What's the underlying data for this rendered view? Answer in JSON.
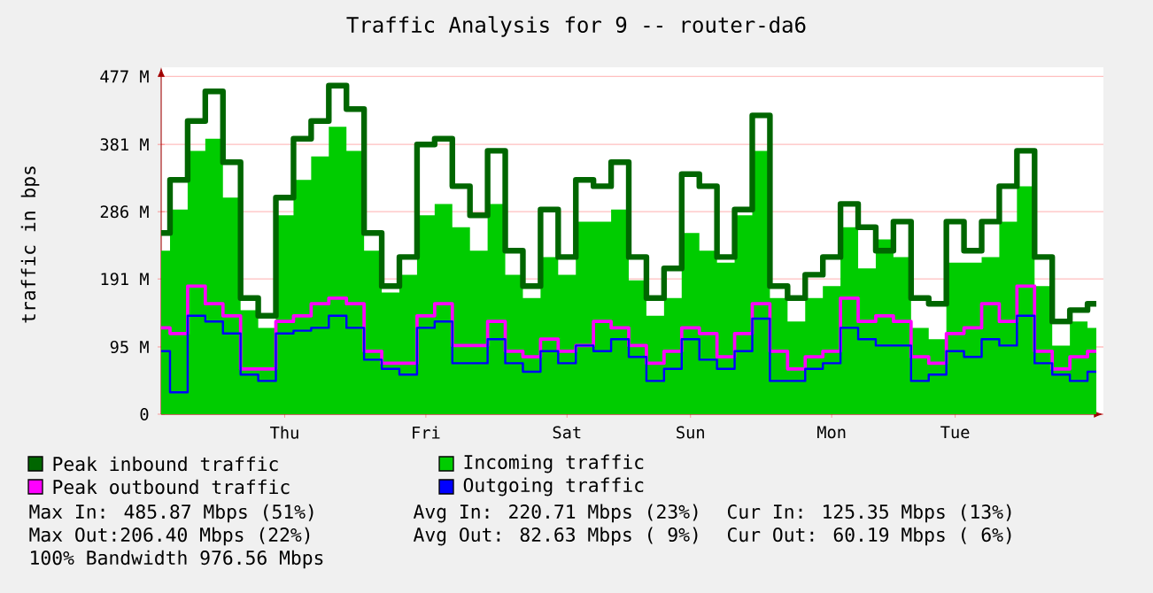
{
  "chart_data": {
    "type": "area",
    "title": "Traffic Analysis for 9 -- router-da6",
    "ylabel": "traffic in bps",
    "categories": [
      null,
      null,
      null,
      null,
      null,
      null,
      null,
      "Thu",
      null,
      null,
      null,
      null,
      null,
      null,
      null,
      "Fri",
      null,
      null,
      null,
      null,
      null,
      null,
      null,
      "Sat",
      null,
      null,
      null,
      null,
      null,
      null,
      "Sun",
      null,
      null,
      null,
      null,
      null,
      null,
      null,
      "Mon",
      null,
      null,
      null,
      null,
      null,
      null,
      "Tue",
      null,
      null,
      null,
      null,
      null,
      null,
      null,
      null
    ],
    "ylim": [
      0,
      490
    ],
    "yticks": [
      0,
      {
        "value": 95,
        "label": "95 M"
      },
      {
        "value": 191,
        "label": "191 M"
      },
      {
        "value": 286,
        "label": "286 M"
      },
      {
        "value": 381,
        "label": "381 M"
      },
      {
        "value": 477,
        "label": "477 M"
      }
    ],
    "grid": "y",
    "legend": "bottom",
    "series": [
      {
        "name": "Peak inbound traffic",
        "type": "step",
        "color": "#006600",
        "values": [
          256,
          331,
          414,
          456,
          356,
          164,
          139,
          306,
          389,
          414,
          464,
          431,
          256,
          181,
          222,
          381,
          389,
          322,
          281,
          372,
          231,
          181,
          289,
          222,
          331,
          322,
          356,
          222,
          164,
          206,
          339,
          322,
          222,
          289,
          422,
          181,
          164,
          197,
          222,
          297,
          264,
          231,
          272,
          164,
          156,
          272,
          231,
          272,
          322,
          372,
          222,
          131,
          147,
          156
        ]
      },
      {
        "name": "Incoming traffic",
        "color": "#00cc00",
        "values": [
          231,
          289,
          372,
          389,
          306,
          147,
          122,
          281,
          331,
          364,
          406,
          372,
          231,
          172,
          197,
          281,
          297,
          264,
          231,
          297,
          197,
          164,
          222,
          197,
          272,
          272,
          289,
          189,
          139,
          164,
          256,
          231,
          214,
          281,
          372,
          164,
          131,
          164,
          181,
          264,
          206,
          247,
          222,
          122,
          106,
          214,
          214,
          222,
          272,
          322,
          181,
          97,
          131,
          122
        ]
      },
      {
        "name": "Peak outbound traffic",
        "type": "step",
        "color": "#ff00ff",
        "values": [
          122,
          114,
          181,
          156,
          139,
          64,
          64,
          131,
          139,
          156,
          164,
          156,
          89,
          72,
          72,
          139,
          156,
          97,
          97,
          131,
          89,
          81,
          106,
          89,
          97,
          131,
          122,
          97,
          72,
          89,
          122,
          114,
          81,
          114,
          156,
          89,
          64,
          81,
          89,
          164,
          131,
          139,
          131,
          81,
          72,
          114,
          122,
          156,
          131,
          181,
          89,
          64,
          81,
          89
        ]
      },
      {
        "name": "Outgoing traffic",
        "type": "step",
        "color": "#0000ff",
        "values": [
          89,
          31,
          139,
          131,
          114,
          56,
          47,
          114,
          118,
          122,
          139,
          122,
          77,
          64,
          56,
          122,
          131,
          72,
          72,
          106,
          72,
          60,
          89,
          72,
          97,
          89,
          106,
          81,
          47,
          64,
          106,
          77,
          64,
          89,
          135,
          47,
          47,
          64,
          72,
          122,
          106,
          97,
          97,
          47,
          56,
          89,
          81,
          106,
          97,
          139,
          72,
          56,
          47,
          60
        ]
      }
    ],
    "annotations": [
      "Max In: 485.87 Mbps (51%)",
      "Avg In: 220.71 Mbps (23%)",
      "Cur In: 125.35 Mbps (13%)",
      "Max Out:206.40 Mbps (22%)",
      "Avg Out: 82.63 Mbps ( 9%)",
      "Cur Out: 60.19 Mbps ( 6%)",
      "100% Bandwidth 976.56 Mbps"
    ]
  }
}
